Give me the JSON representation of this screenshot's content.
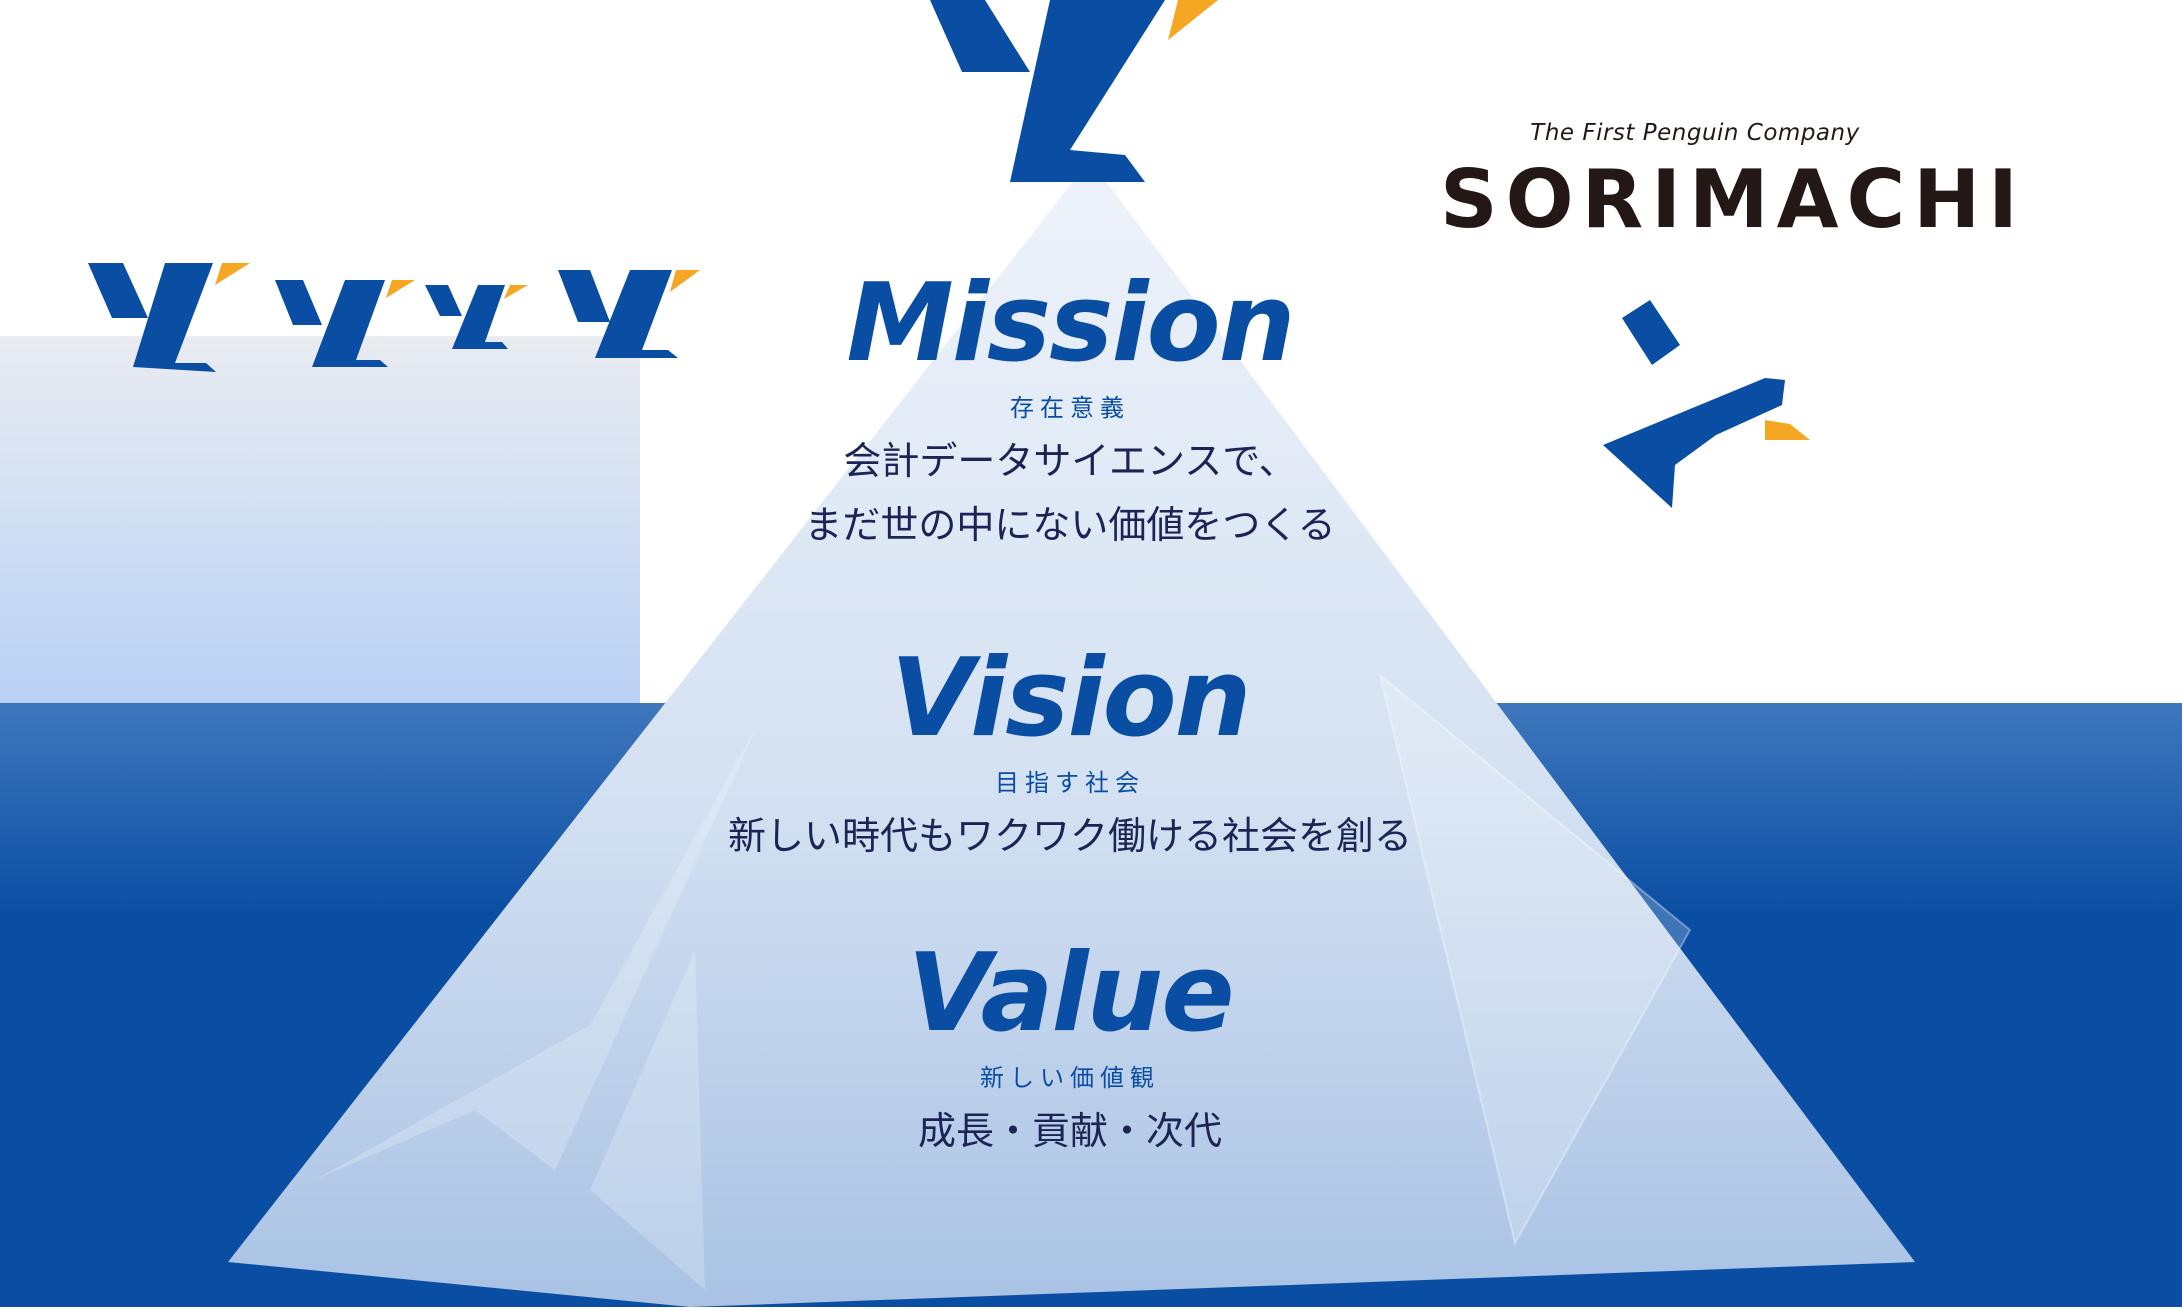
{
  "brand": {
    "tagline": "The First Penguin Company",
    "name": "SORIMACHI",
    "logo_icon": "penguin-mark-icon"
  },
  "colors": {
    "brand_blue": "#0a4ea3",
    "accent_orange": "#f5a623",
    "text_dark": "#1b2455",
    "ocean": "#0a4ea3"
  },
  "mission": {
    "heading": "Mission",
    "sub": "存在意義",
    "lines": [
      "会計データサイエンスで、",
      "まだ世の中にない価値をつくる"
    ]
  },
  "vision": {
    "heading": "Vision",
    "sub": "目指す社会",
    "lines": [
      "新しい時代もワクワク働ける社会を創る"
    ]
  },
  "value": {
    "heading": "Value",
    "sub": "新しい価値観",
    "lines": [
      "成長・貢献・次代"
    ]
  }
}
